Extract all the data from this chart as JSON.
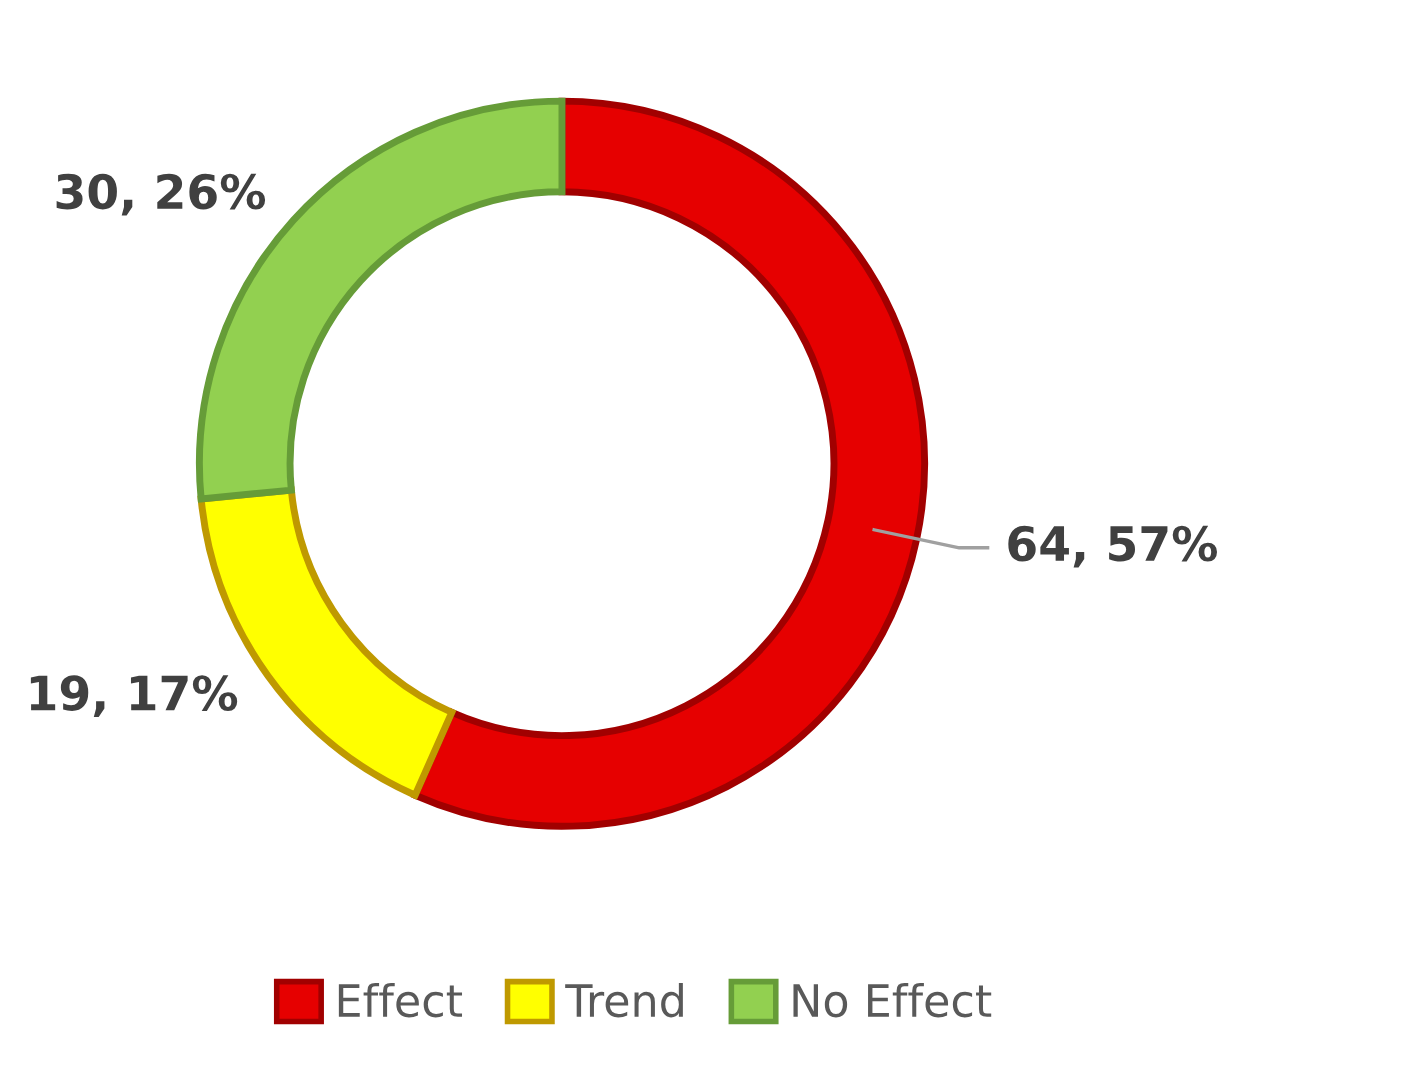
{
  "chart_data": {
    "type": "donut",
    "categories": [
      "Effect",
      "Trend",
      "No Effect"
    ],
    "values": [
      64,
      19,
      30
    ],
    "colors": [
      "#e60000",
      "#ffff00",
      "#92d050"
    ],
    "value_labels": [
      "64, 57%",
      "19, 17%",
      "30, 26%"
    ],
    "legend": "bottom"
  }
}
